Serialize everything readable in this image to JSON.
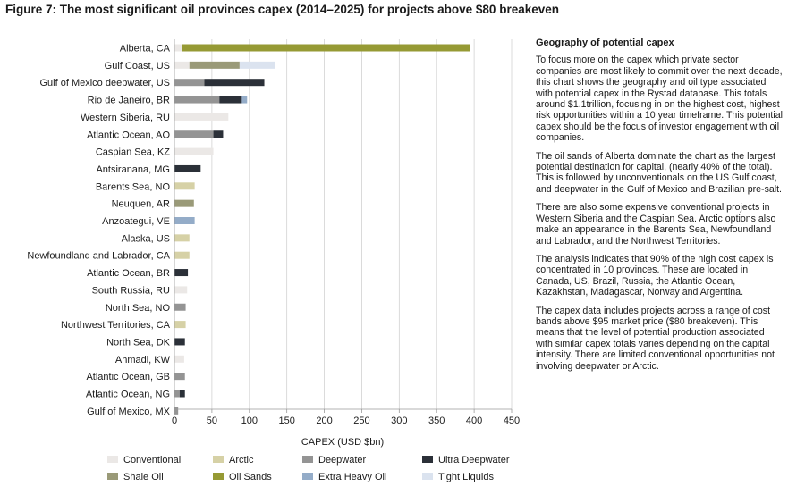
{
  "figure_title": "Figure 7: The most significant oil provinces capex (2014–2025) for projects above $80 breakeven",
  "colors": {
    "Conventional": "#ebe8e6",
    "Arctic": "#d6d1a6",
    "Deepwater": "#949494",
    "Ultra Deepwater": "#2b3038",
    "Shale Oil": "#9a9a78",
    "Oil Sands": "#969a34",
    "Extra Heavy Oil": "#94acc8",
    "Tight Liquids": "#dbe3ef"
  },
  "chart_data": {
    "type": "bar",
    "orientation": "horizontal",
    "stacked": true,
    "xlabel": "CAPEX (USD $bn)",
    "xlim": [
      0,
      450
    ],
    "xticks": [
      0,
      50,
      100,
      150,
      200,
      250,
      300,
      350,
      400,
      450
    ],
    "grid": "vertical",
    "categories": [
      "Alberta, CA",
      "Gulf Coast, US",
      "Gulf of Mexico deepwater, US",
      "Rio de Janeiro, BR",
      "Western Siberia, RU",
      "Atlantic Ocean, AO",
      "Caspian Sea, KZ",
      "Antsiranana, MG",
      "Barents Sea, NO",
      "Neuquen, AR",
      "Anzoategui, VE",
      "Alaska, US",
      "Newfoundland and Labrador, CA",
      "Atlantic Ocean, BR",
      "South Russia, RU",
      "North Sea, NO",
      "Northwest Territories, CA",
      "North Sea, DK",
      "Ahmadi, KW",
      "Atlantic Ocean, GB",
      "Atlantic Ocean, NG",
      "Gulf of Mexico, MX"
    ],
    "series": [
      {
        "name": "Conventional",
        "values": [
          10,
          20,
          0,
          0,
          72,
          0,
          52,
          0,
          0,
          0,
          0,
          0,
          0,
          0,
          17,
          0,
          0,
          0,
          13,
          0,
          0,
          0
        ]
      },
      {
        "name": "Arctic",
        "values": [
          0,
          0,
          0,
          0,
          0,
          0,
          0,
          0,
          27,
          0,
          0,
          20,
          20,
          0,
          0,
          0,
          15,
          0,
          0,
          0,
          0,
          0
        ]
      },
      {
        "name": "Deepwater",
        "values": [
          0,
          0,
          40,
          60,
          0,
          52,
          0,
          0,
          0,
          0,
          0,
          0,
          0,
          0,
          0,
          15,
          0,
          0,
          0,
          14,
          7,
          5
        ]
      },
      {
        "name": "Ultra Deepwater",
        "values": [
          0,
          0,
          80,
          30,
          0,
          13,
          0,
          35,
          0,
          0,
          0,
          0,
          0,
          18,
          0,
          0,
          0,
          14,
          0,
          0,
          7,
          0
        ]
      },
      {
        "name": "Shale Oil",
        "values": [
          0,
          67,
          0,
          0,
          0,
          0,
          0,
          0,
          0,
          26,
          0,
          0,
          0,
          0,
          0,
          0,
          0,
          0,
          0,
          0,
          0,
          0
        ]
      },
      {
        "name": "Oil Sands",
        "values": [
          385,
          0,
          0,
          0,
          0,
          0,
          0,
          0,
          0,
          0,
          0,
          0,
          0,
          0,
          0,
          0,
          0,
          0,
          0,
          0,
          0,
          0
        ]
      },
      {
        "name": "Extra Heavy Oil",
        "values": [
          0,
          0,
          0,
          7,
          0,
          0,
          0,
          0,
          0,
          0,
          27,
          0,
          0,
          0,
          0,
          0,
          0,
          0,
          0,
          0,
          0,
          0
        ]
      },
      {
        "name": "Tight Liquids",
        "values": [
          0,
          47,
          0,
          0,
          0,
          0,
          0,
          0,
          0,
          0,
          0,
          0,
          0,
          0,
          0,
          0,
          0,
          0,
          0,
          0,
          0,
          0
        ]
      }
    ],
    "legend_position": "bottom"
  },
  "panel": {
    "heading": "Geography of potential capex",
    "paragraphs": [
      "To focus more on the capex which private sector companies are most likely to commit over the next decade, this chart shows the geography and oil type associated with potential capex in the Rystad database. This totals around $1.1trillion, focusing in on the highest cost, highest risk opportunities within a 10 year timeframe. This potential capex should be the focus of investor engagement with oil companies.",
      "The oil sands of Alberta dominate the chart as the largest potential destination for capital, (nearly 40% of the total). This is followed by unconventionals on the US Gulf coast, and deepwater in the Gulf of Mexico and Brazilian pre-salt.",
      "There are also some expensive conventional projects in Western Siberia and the Caspian Sea. Arctic options also make an appearance in the Barents Sea, Newfoundland and Labrador, and the Northwest Territories.",
      "The analysis indicates that 90% of the high cost capex is concentrated in 10 provinces. These are located in Canada, US, Brazil, Russia, the Atlantic Ocean, Kazakhstan, Madagascar, Norway and Argentina.",
      "The capex data includes projects across a range of cost bands above $95 market price ($80 breakeven). This means that the level of potential production associated with similar capex totals varies depending on the capital intensity. There are limited conventional opportunities not involving deepwater or Arctic."
    ]
  },
  "legend": {
    "row1": [
      "Conventional",
      "Arctic",
      "Deepwater",
      "Ultra Deepwater"
    ],
    "row2": [
      "Shale Oil",
      "Oil Sands",
      "Extra Heavy Oil",
      "Tight Liquids"
    ]
  }
}
